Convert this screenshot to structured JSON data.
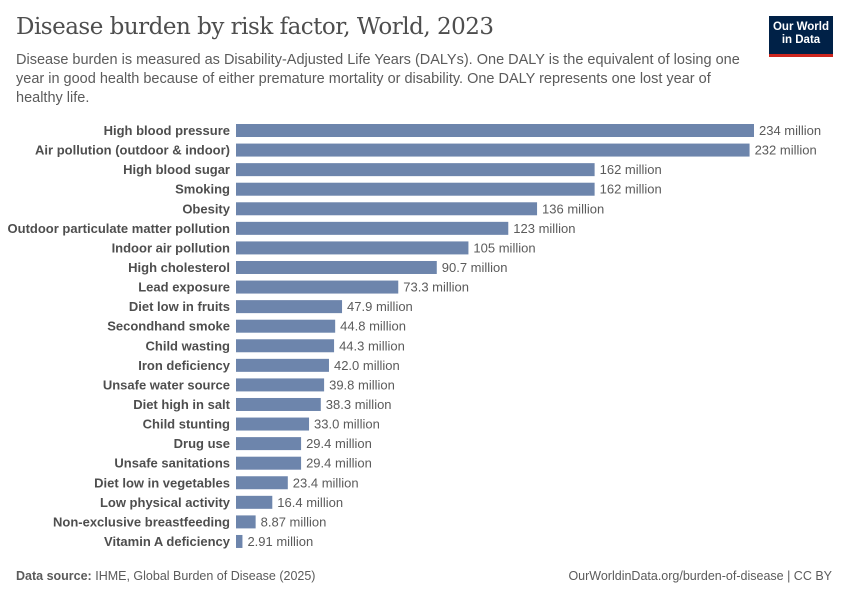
{
  "header": {
    "title": "Disease burden by risk factor, World, 2023",
    "subtitle": "Disease burden is measured as Disability-Adjusted Life Years (DALYs). One DALY is the equivalent of losing one year in good health because of either premature mortality or disability. One DALY represents one lost year of healthy life.",
    "logo_text": "Our World in Data"
  },
  "footer": {
    "source_label": "Data source:",
    "source": "IHME, Global Burden of Disease (2025)",
    "link": "OurWorldinData.org/burden-of-disease | CC BY"
  },
  "chart_data": {
    "type": "bar",
    "orientation": "horizontal",
    "bar_color": "#6d85ac",
    "unit": "million",
    "categories": [
      "High blood pressure",
      "Air pollution (outdoor & indoor)",
      "High blood sugar",
      "Smoking",
      "Obesity",
      "Outdoor particulate matter pollution",
      "Indoor air pollution",
      "High cholesterol",
      "Lead exposure",
      "Diet low in fruits",
      "Secondhand smoke",
      "Child wasting",
      "Iron deficiency",
      "Unsafe water source",
      "Diet high in salt",
      "Child stunting",
      "Drug use",
      "Unsafe sanitations",
      "Diet low in vegetables",
      "Low physical activity",
      "Non-exclusive breastfeeding",
      "Vitamin A deficiency"
    ],
    "values": [
      234,
      232,
      162,
      162,
      136,
      123,
      105,
      90.7,
      73.3,
      47.9,
      44.8,
      44.3,
      42.0,
      39.8,
      38.3,
      33.0,
      29.4,
      29.4,
      23.4,
      16.4,
      8.87,
      2.91
    ],
    "labels": [
      "234 million",
      "232 million",
      "162 million",
      "162 million",
      "136 million",
      "123 million",
      "105 million",
      "90.7 million",
      "73.3 million",
      "47.9 million",
      "44.8 million",
      "44.3 million",
      "42.0 million",
      "39.8 million",
      "38.3 million",
      "33.0 million",
      "29.4 million",
      "29.4 million",
      "23.4 million",
      "16.4 million",
      "8.87 million",
      "2.91 million"
    ]
  }
}
